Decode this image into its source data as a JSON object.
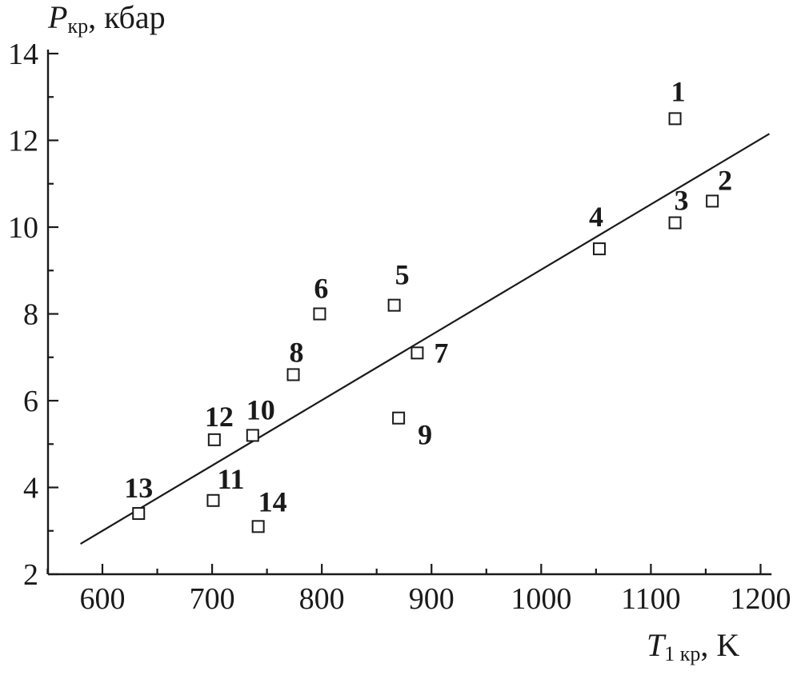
{
  "chart_data": {
    "type": "scatter",
    "ylabel": {
      "main": "P",
      "sub": "кр",
      "unit": ", кбар"
    },
    "xlabel": {
      "main": "T",
      "sub": "1 кр",
      "unit": ", K"
    },
    "xlim": [
      550,
      1210
    ],
    "ylim": [
      2,
      14
    ],
    "xticks": [
      600,
      700,
      800,
      900,
      1000,
      1100,
      1200
    ],
    "yticks": [
      2,
      4,
      6,
      8,
      10,
      12,
      14
    ],
    "points": [
      {
        "label": "1",
        "x": 1122,
        "y": 12.5
      },
      {
        "label": "2",
        "x": 1156,
        "y": 10.6
      },
      {
        "label": "3",
        "x": 1122,
        "y": 10.1
      },
      {
        "label": "4",
        "x": 1053,
        "y": 9.5
      },
      {
        "label": "5",
        "x": 866,
        "y": 8.2
      },
      {
        "label": "6",
        "x": 798,
        "y": 8.0
      },
      {
        "label": "7",
        "x": 887,
        "y": 7.1
      },
      {
        "label": "8",
        "x": 774,
        "y": 6.6
      },
      {
        "label": "9",
        "x": 870,
        "y": 5.6
      },
      {
        "label": "10",
        "x": 737,
        "y": 5.2
      },
      {
        "label": "11",
        "x": 701,
        "y": 3.7
      },
      {
        "label": "12",
        "x": 702,
        "y": 5.1
      },
      {
        "label": "13",
        "x": 633,
        "y": 3.4
      },
      {
        "label": "14",
        "x": 742,
        "y": 3.1
      }
    ],
    "fit_line": {
      "x": [
        580,
        1208
      ],
      "y": [
        2.7,
        12.15
      ]
    },
    "grid": false,
    "legend": "none"
  }
}
